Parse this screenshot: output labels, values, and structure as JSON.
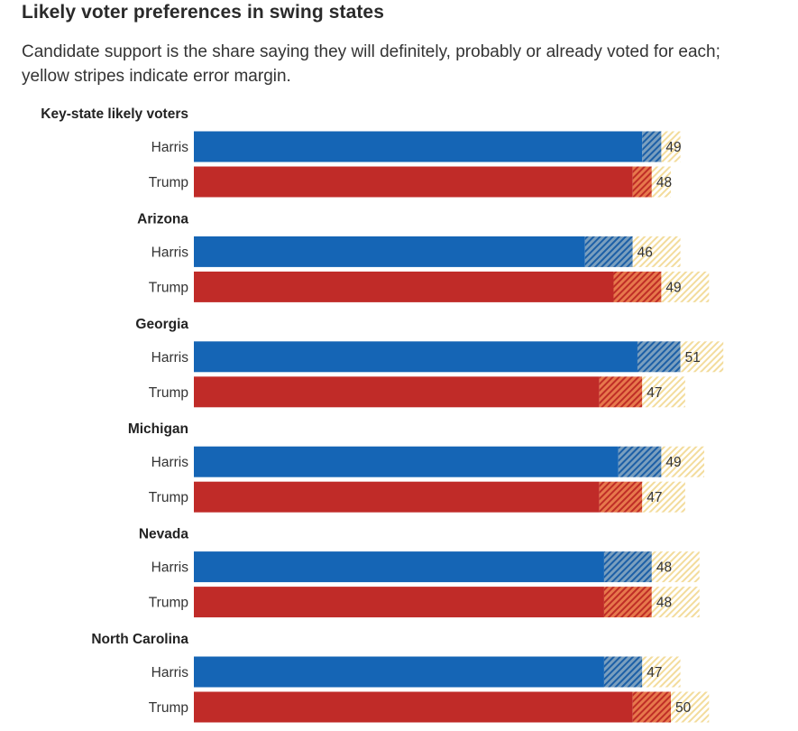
{
  "header": {
    "title": "Likely voter preferences in swing states",
    "subtitle": "Candidate support is the share saying they will definitely, probably or already voted for each; yellow stripes indicate error margin."
  },
  "colors": {
    "harris": "#1565b5",
    "trump": "#c02b28",
    "margin": "#f2d58a"
  },
  "chart_data": {
    "type": "bar",
    "orientation": "horizontal",
    "title": "Likely voter preferences in swing states",
    "subtitle": "Candidate support is the share saying they will definitely, probably or already voted for each; yellow stripes indicate error margin.",
    "groups": [
      {
        "name": "Key-state likely voters",
        "rows": [
          {
            "candidate": "Harris",
            "value": 49,
            "margin": 2
          },
          {
            "candidate": "Trump",
            "value": 48,
            "margin": 2
          }
        ]
      },
      {
        "name": "Arizona",
        "rows": [
          {
            "candidate": "Harris",
            "value": 46,
            "margin": 5
          },
          {
            "candidate": "Trump",
            "value": 49,
            "margin": 5
          }
        ]
      },
      {
        "name": "Georgia",
        "rows": [
          {
            "candidate": "Harris",
            "value": 51,
            "margin": 4.5
          },
          {
            "candidate": "Trump",
            "value": 47,
            "margin": 4.5
          }
        ]
      },
      {
        "name": "Michigan",
        "rows": [
          {
            "candidate": "Harris",
            "value": 49,
            "margin": 4.5
          },
          {
            "candidate": "Trump",
            "value": 47,
            "margin": 4.5
          }
        ]
      },
      {
        "name": "Nevada",
        "rows": [
          {
            "candidate": "Harris",
            "value": 48,
            "margin": 5
          },
          {
            "candidate": "Trump",
            "value": 48,
            "margin": 5
          }
        ]
      },
      {
        "name": "North Carolina",
        "rows": [
          {
            "candidate": "Harris",
            "value": 47,
            "margin": 4
          },
          {
            "candidate": "Trump",
            "value": 50,
            "margin": 4
          }
        ]
      }
    ]
  }
}
